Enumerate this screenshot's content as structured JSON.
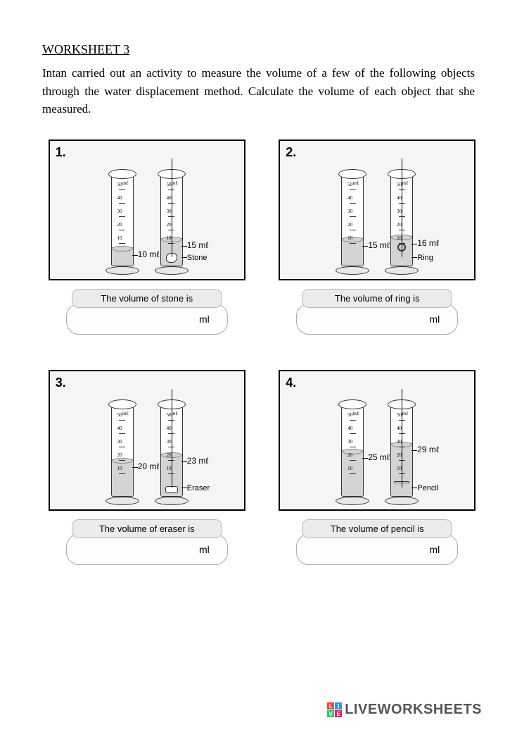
{
  "header": {
    "title": "WORKSHEET 3",
    "instructions": "Intan carried out an activity to measure the volume of a few of the following objects through the water displacement method. Calculate the volume of each object that she measured."
  },
  "problems": [
    {
      "number": "1.",
      "initial_volume": "10 mℓ",
      "final_volume": "15 mℓ",
      "initial_water_pct": 20,
      "final_water_pct": 30,
      "object_name": "Stone",
      "object_class": "stone",
      "answer_label": "The volume of stone is",
      "unit": "ml"
    },
    {
      "number": "2.",
      "initial_volume": "15 mℓ",
      "final_volume": "16 mℓ",
      "initial_water_pct": 30,
      "final_water_pct": 32,
      "object_name": "Ring",
      "object_class": "ring",
      "answer_label": "The volume of ring is",
      "unit": "ml"
    },
    {
      "number": "3.",
      "initial_volume": "20 mℓ",
      "final_volume": "23 mℓ",
      "initial_water_pct": 40,
      "final_water_pct": 46,
      "object_name": "Eraser",
      "object_class": "eraser",
      "answer_label": "The volume of eraser is",
      "unit": "ml"
    },
    {
      "number": "4.",
      "initial_volume": "25 mℓ",
      "final_volume": "29 mℓ",
      "initial_water_pct": 50,
      "final_water_pct": 58,
      "object_name": "Pencil",
      "object_class": "pencil",
      "answer_label": "The volume of pencil is",
      "unit": "ml"
    }
  ],
  "scale": {
    "ticks": [
      10,
      20,
      30,
      40,
      50
    ],
    "unit_label": "mℓ"
  },
  "footer": {
    "brand": "LIVEWORKSHEETS",
    "logo_colors": [
      "#e74c3c",
      "#3498db",
      "#2ecc71",
      "#e91e63"
    ],
    "logo_letters": [
      "L",
      "I",
      "V",
      "E"
    ]
  }
}
